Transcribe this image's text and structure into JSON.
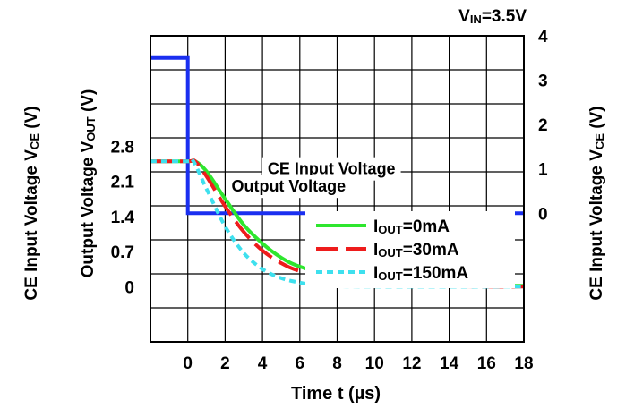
{
  "chart_data": {
    "type": "line",
    "condition": {
      "prefix": "V",
      "sub": "IN",
      "suffix": "=3.5V"
    },
    "xlabel": "Time t (µs)",
    "left_ylabel_outer": {
      "prefix": "CE Input Voltage V",
      "sub": "CE",
      "suffix": " (V)"
    },
    "left_ylabel_inner": {
      "prefix": "Output Voltage V",
      "sub": "OUT",
      "suffix": " (V)"
    },
    "right_ylabel": {
      "prefix": "CE Input Voltage V",
      "sub": "CE",
      "suffix": " (V)"
    },
    "xlim": [
      -2,
      18
    ],
    "x_ticks": [
      0,
      2,
      4,
      6,
      8,
      10,
      12,
      14,
      16,
      18
    ],
    "left_ylim": [
      -1.1,
      5.0
    ],
    "left_ticks": [
      "0",
      "0.7",
      "1.4",
      "2.1",
      "2.8"
    ],
    "left_tick_values": [
      0,
      0.7,
      1.4,
      2.1,
      2.8
    ],
    "right_ylim": [
      -2.9,
      4.0
    ],
    "right_ticks": [
      "0",
      "1",
      "2",
      "3",
      "4"
    ],
    "right_tick_values": [
      0,
      1,
      2,
      3,
      4
    ],
    "grid": true,
    "annotations": [
      {
        "text": "CE Input Voltage",
        "x": 7.7,
        "y_right": 1.0
      },
      {
        "text": "Output Voltage",
        "x": 5.4,
        "y_left": 2.0
      }
    ],
    "series": [
      {
        "name": "CE Input Voltage",
        "axis": "right",
        "color": "#1a2ff0",
        "dash": "solid",
        "x": [
          -2,
          0,
          0,
          18
        ],
        "y": [
          3.5,
          3.5,
          0,
          0
        ]
      },
      {
        "name_parts": {
          "prefix": "I",
          "sub": "OUT",
          "suffix": "=0mA"
        },
        "axis": "left",
        "color": "#2ee62e",
        "dash": "solid",
        "x": [
          -2,
          0,
          0.4,
          1,
          2,
          3,
          4,
          5,
          6,
          8,
          10,
          12,
          14,
          16,
          18
        ],
        "y": [
          2.5,
          2.5,
          2.5,
          2.3,
          1.75,
          1.23,
          0.86,
          0.58,
          0.4,
          0.19,
          0.09,
          0.05,
          0.03,
          0.02,
          0.02
        ]
      },
      {
        "name_parts": {
          "prefix": "I",
          "sub": "OUT",
          "suffix": "=30mA"
        },
        "axis": "left",
        "color": "#ee1c1c",
        "dash": "dashed",
        "x": [
          -2,
          0,
          0.4,
          1,
          2,
          3,
          4,
          5,
          6,
          8,
          10,
          12,
          14,
          16,
          18
        ],
        "y": [
          2.5,
          2.5,
          2.5,
          2.2,
          1.6,
          1.09,
          0.72,
          0.47,
          0.31,
          0.13,
          0.05,
          0.02,
          0.01,
          0.0,
          0.0
        ]
      },
      {
        "name_parts": {
          "prefix": "I",
          "sub": "OUT",
          "suffix": "=150mA"
        },
        "axis": "left",
        "color": "#3ee0ee",
        "dash": "dotted",
        "x": [
          -2,
          0,
          0.3,
          1,
          2,
          3,
          4,
          5,
          6,
          7,
          8,
          10,
          18
        ],
        "y": [
          2.5,
          2.5,
          2.5,
          1.95,
          1.2,
          0.67,
          0.35,
          0.17,
          0.08,
          0.03,
          0.01,
          0.0,
          0.0
        ]
      }
    ]
  }
}
